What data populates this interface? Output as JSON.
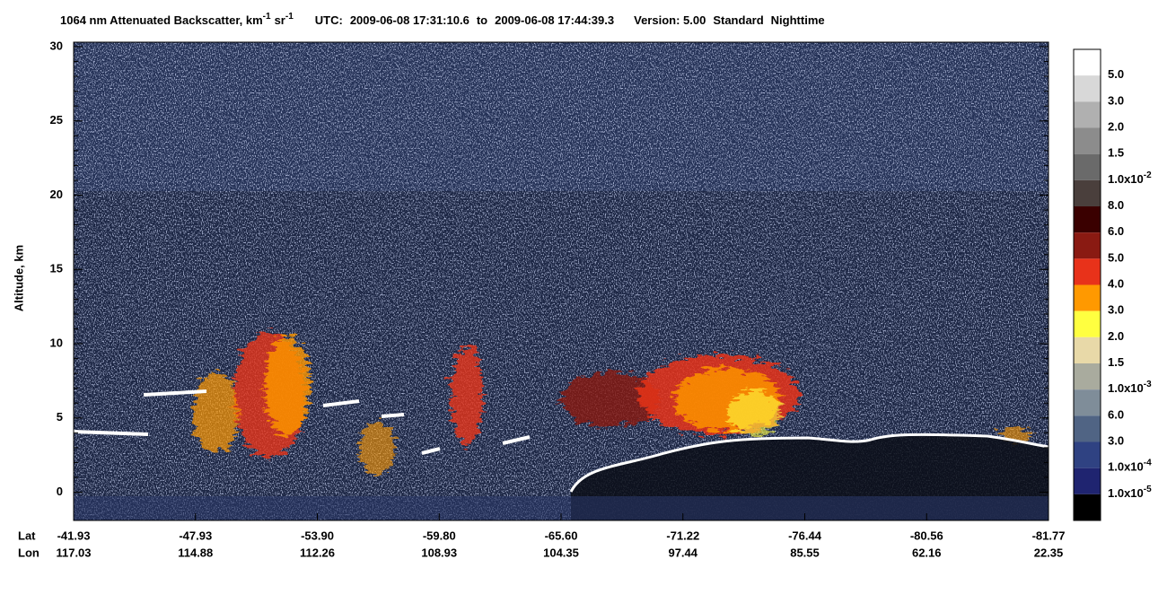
{
  "chart_data": {
    "type": "curtain",
    "title": {
      "main": "1064 nm Attenuated Backscatter, km",
      "sup1": "-1",
      "unit2": "sr",
      "sup2": "-1",
      "utc_label": "UTC:",
      "start": "2009-06-08 17:31:10.6",
      "to": "to",
      "end": "2009-06-08 17:44:39.3",
      "version": "Version: 5.00",
      "product": "Standard",
      "mode": "Nighttime"
    },
    "y_label": "Altitude, km",
    "ylim": [
      -1.9,
      30.3
    ],
    "yticks": [
      0,
      5,
      10,
      15,
      20,
      25,
      30
    ],
    "x_row_labels": [
      "Lat",
      "Lon"
    ],
    "xticks": [
      {
        "lat": "-41.93",
        "lon": "117.03"
      },
      {
        "lat": "-47.93",
        "lon": "114.88"
      },
      {
        "lat": "-53.90",
        "lon": "112.26"
      },
      {
        "lat": "-59.80",
        "lon": "108.93"
      },
      {
        "lat": "-65.60",
        "lon": "104.35"
      },
      {
        "lat": "-71.22",
        "lon": "97.44"
      },
      {
        "lat": "-76.44",
        "lon": "85.55"
      },
      {
        "lat": "-80.56",
        "lon": "62.16"
      },
      {
        "lat": "-81.77",
        "lon": "22.35"
      }
    ],
    "colorbar": {
      "colors": [
        "#ffffff",
        "#d8d8d8",
        "#b0b0b0",
        "#8c8c8c",
        "#6a6a6a",
        "#4a3f3c",
        "#3a0000",
        "#8a1a12",
        "#e8321a",
        "#ff9900",
        "#ffff40",
        "#e8d9a8",
        "#a9ab9e",
        "#7f8d99",
        "#506484",
        "#2f4282",
        "#1f2470",
        "#000000"
      ],
      "labels": [
        {
          "text": "5.0"
        },
        {
          "text": "3.0"
        },
        {
          "text": "2.0"
        },
        {
          "text": "1.5"
        },
        {
          "text": "1.0x10",
          "sup": "-2"
        },
        {
          "text": "8.0"
        },
        {
          "text": "6.0"
        },
        {
          "text": "5.0"
        },
        {
          "text": "4.0"
        },
        {
          "text": "3.0"
        },
        {
          "text": "2.0"
        },
        {
          "text": "1.5"
        },
        {
          "text": "1.0x10",
          "sup": "-3"
        },
        {
          "text": "6.0"
        },
        {
          "text": "3.0"
        },
        {
          "text": "1.0x10",
          "sup": "-4"
        },
        {
          "text": "1.0x10",
          "sup": "-5"
        }
      ]
    }
  }
}
